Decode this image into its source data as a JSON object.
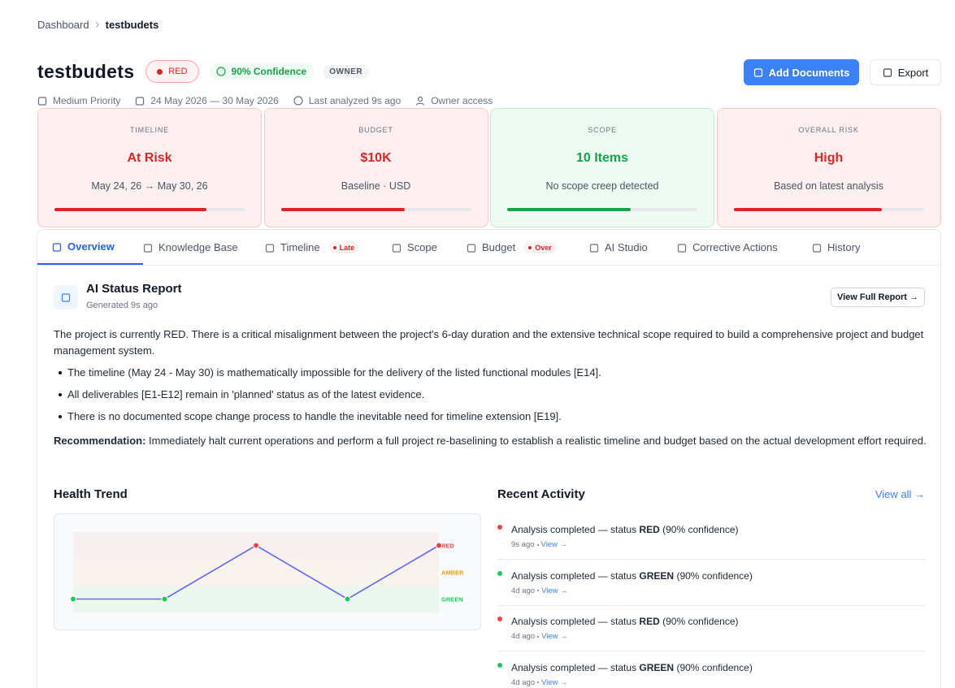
{
  "breadcrumb": [
    "Dashboard",
    "testbudets"
  ],
  "header": {
    "title": "testbudets",
    "status": "RED",
    "confidence": "90% Confidence",
    "role": "OWNER",
    "actions": [
      "Add Documents",
      "Export"
    ],
    "meta": [
      "Medium Priority",
      "24 May 2026 — 30 May 2026",
      "Last analyzed 9s ago",
      "Owner access"
    ]
  },
  "cards": [
    {
      "label": "TIMELINE",
      "value": "At Risk",
      "note": "May 24, 26 → May 30, 26",
      "progress": 80,
      "tone": "red"
    },
    {
      "label": "BUDGET",
      "value": "$10K",
      "note": "Baseline · USD",
      "progress": 65,
      "tone": "red"
    },
    {
      "label": "SCOPE",
      "value": "10 Items",
      "note": "No scope creep detected",
      "progress": 65,
      "tone": "green"
    },
    {
      "label": "OVERALL RISK",
      "value": "High",
      "note": "Based on latest analysis",
      "progress": 78,
      "tone": "red"
    }
  ],
  "tabs": [
    {
      "label": "Overview"
    },
    {
      "label": "Knowledge Base"
    },
    {
      "label": "Timeline",
      "badge": "Late"
    },
    {
      "label": "Scope"
    },
    {
      "label": "Budget",
      "badge": "Over"
    },
    {
      "label": "AI Studio"
    },
    {
      "label": "Corrective Actions"
    },
    {
      "label": "History"
    }
  ],
  "report": {
    "title": "AI Status Report",
    "generated": "Generated 9s ago",
    "button": "View Full Report →",
    "summary": "The project is currently RED. There is a critical misalignment between the project's 6-day duration and the extensive technical scope required to build a comprehensive project and budget management system.",
    "bullets": [
      "The timeline (May 24 - May 30) is mathematically impossible for the delivery of the listed functional modules [E14].",
      "All deliverables [E1-E12] remain in 'planned' status as of the latest evidence.",
      "There is no documented scope change process to handle the inevitable need for timeline extension [E19]."
    ],
    "recommendation_label": "Recommendation:",
    "recommendation": "Immediately halt current operations and perform a full project re-baselining to establish a realistic timeline and budget based on the actual development effort required."
  },
  "health_trend": {
    "title": "Health Trend",
    "levels": [
      {
        "name": "RED",
        "color": "#ef4444"
      },
      {
        "name": "AMBER",
        "color": "#f59e0b"
      },
      {
        "name": "GREEN",
        "color": "#22c55e"
      }
    ],
    "points": [
      "GREEN",
      "GREEN",
      "RED",
      "GREEN",
      "RED"
    ],
    "line_color": "#6366f1"
  },
  "activity": {
    "title": "Recent Activity",
    "view_all": "View all →",
    "items": [
      {
        "text": "Analysis completed — status",
        "status": "RED",
        "suffix": "(90% confidence)",
        "time": "9s ago",
        "link": "View →"
      },
      {
        "text": "Analysis completed — status",
        "status": "GREEN",
        "suffix": "(90% confidence)",
        "time": "4d ago",
        "link": "View →"
      },
      {
        "text": "Analysis completed — status",
        "status": "RED",
        "suffix": "(90% confidence)",
        "time": "4d ago",
        "link": "View →"
      },
      {
        "text": "Analysis completed — status",
        "status": "GREEN",
        "suffix": "(90% confidence)",
        "time": "4d ago",
        "link": "View →"
      }
    ]
  }
}
